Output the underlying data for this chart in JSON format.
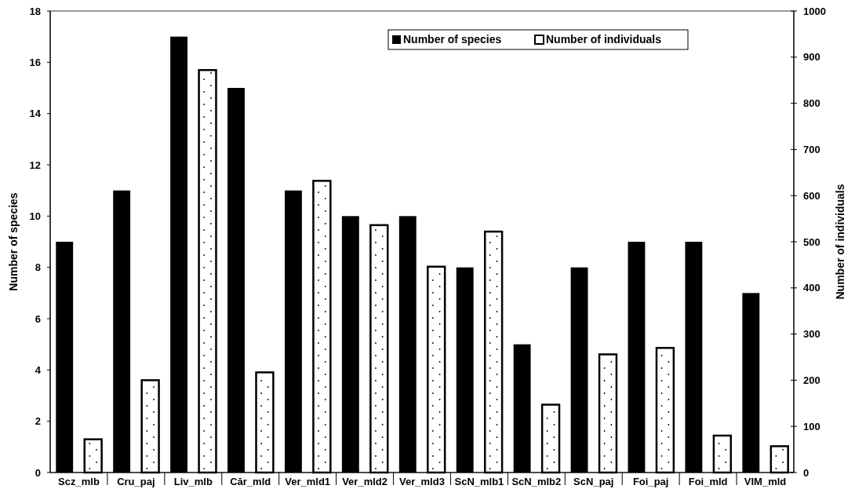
{
  "chart_data": {
    "type": "bar",
    "xlabel": null,
    "ylabel": "Number of species",
    "y2label": "Number of individuals",
    "categories": [
      "Scz_mlb",
      "Cru_paj",
      "Liv_mlb",
      "Căr_mld",
      "Ver_mld1",
      "Ver_mld2",
      "Ver_mld3",
      "ScN_mlb1",
      "ScN_mlb2",
      "ScN_paj",
      "Foi_paj",
      "Foi_mld",
      "VIM_mld"
    ],
    "series": [
      {
        "name": "Number of species",
        "color": "#000000",
        "values": [
          9,
          11,
          17,
          15,
          11,
          10,
          10,
          8,
          5,
          8,
          9,
          9,
          7
        ]
      },
      {
        "name": "Number of individuals",
        "color": "#ffffff",
        "axis": "y2",
        "values": [
          72,
          200,
          872,
          217,
          632,
          536,
          446,
          522,
          147,
          256,
          270,
          80,
          57
        ]
      }
    ],
    "ylim": [
      0,
      18
    ],
    "yticks": [
      0,
      2,
      4,
      6,
      8,
      10,
      12,
      14,
      16,
      18
    ],
    "y2lim": [
      0,
      1000
    ],
    "y2ticks": [
      0,
      100,
      200,
      300,
      400,
      500,
      600,
      700,
      800,
      900,
      1000
    ],
    "grid": false,
    "legend": "top right"
  }
}
